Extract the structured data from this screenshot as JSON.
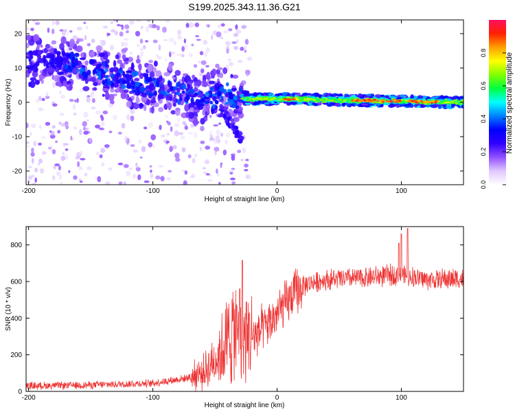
{
  "title": "S199.2025.343.11.36.G21",
  "chart_data": [
    {
      "type": "heatmap",
      "title": "S199.2025.343.11.36.G21",
      "xlabel": "Height of straight line (km)",
      "ylabel": "Frequency (Hz)",
      "xlim": [
        -202,
        150
      ],
      "ylim": [
        -24,
        24
      ],
      "xticks": [
        -200,
        -100,
        0,
        100
      ],
      "yticks": [
        -20,
        -10,
        0,
        10,
        20
      ],
      "ridge": [
        {
          "x": -200,
          "y": 12
        },
        {
          "x": -160,
          "y": 11
        },
        {
          "x": -120,
          "y": 6
        },
        {
          "x": -80,
          "y": 3
        },
        {
          "x": -60,
          "y": 0
        },
        {
          "x": -45,
          "y": 3
        },
        {
          "x": -28,
          "y": 1
        },
        {
          "x": 0,
          "y": 1
        },
        {
          "x": 150,
          "y": 0
        }
      ],
      "colorbar": {
        "label": "Normalized spectral amplitude",
        "range": [
          0,
          1
        ],
        "ticks": [
          0.0,
          0.2,
          0.4,
          0.6,
          0.8
        ],
        "colors": [
          "#ffffff",
          "#e0c8ff",
          "#9050ff",
          "#3000ff",
          "#0000ff",
          "#0080ff",
          "#00ffff",
          "#00ff40",
          "#80ff00",
          "#ffff00",
          "#ffa000",
          "#ff2000",
          "#ff1060"
        ]
      }
    },
    {
      "type": "line",
      "xlabel": "Height of straight line (km)",
      "ylabel": "SNR (10 * v/v)",
      "xlim": [
        -202,
        150
      ],
      "ylim": [
        0,
        900
      ],
      "xticks": [
        -200,
        -100,
        0,
        100
      ],
      "yticks": [
        0,
        200,
        400,
        600,
        800
      ],
      "color": "#ee3333",
      "envelope": [
        {
          "x": -202,
          "snr": 30
        },
        {
          "x": -150,
          "snr": 35
        },
        {
          "x": -100,
          "snr": 45
        },
        {
          "x": -75,
          "snr": 70
        },
        {
          "x": -60,
          "snr": 100
        },
        {
          "x": -48,
          "snr": 190
        },
        {
          "x": -35,
          "snr": 330
        },
        {
          "x": -25,
          "snr": 290
        },
        {
          "x": -15,
          "snr": 320
        },
        {
          "x": -5,
          "snr": 380
        },
        {
          "x": 5,
          "snr": 460
        },
        {
          "x": 15,
          "snr": 540
        },
        {
          "x": 25,
          "snr": 590
        },
        {
          "x": 40,
          "snr": 610
        },
        {
          "x": 70,
          "snr": 620
        },
        {
          "x": 100,
          "snr": 640
        },
        {
          "x": 120,
          "snr": 610
        },
        {
          "x": 150,
          "snr": 615
        }
      ],
      "spikes": [
        {
          "x": -28,
          "snr": 715
        },
        {
          "x": -30,
          "snr": 560
        },
        {
          "x": 100,
          "snr": 860
        },
        {
          "x": 105,
          "snr": 890
        },
        {
          "x": 98,
          "snr": 810
        }
      ]
    }
  ]
}
